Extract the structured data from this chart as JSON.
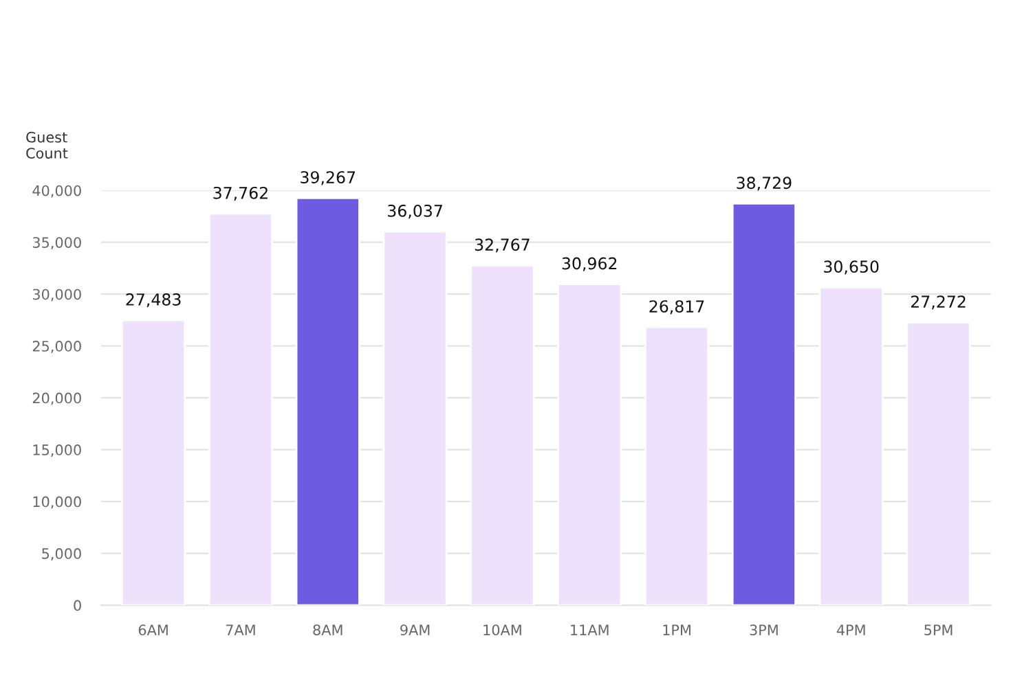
{
  "chart_data": {
    "type": "bar",
    "ylabel": "Guest Count",
    "categories": [
      "6AM",
      "7AM",
      "8AM",
      "9AM",
      "10AM",
      "11AM",
      "1PM",
      "3PM",
      "4PM",
      "5PM"
    ],
    "values": [
      27483,
      37762,
      39267,
      36037,
      32767,
      30962,
      26817,
      38729,
      30650,
      27272
    ],
    "colors": [
      "#ede1fc",
      "#ede1fc",
      "#6f5be2",
      "#ede1fc",
      "#ede1fc",
      "#ede1fc",
      "#ede1fc",
      "#6f5be2",
      "#ede1fc",
      "#ede1fc"
    ],
    "value_labels": [
      "27,483",
      "37,762",
      "39,267",
      "36,037",
      "32,767",
      "30,962",
      "26,817",
      "38,729",
      "30,650",
      "27,272"
    ],
    "ylim": [
      0,
      40000
    ],
    "yticks": [
      {
        "value": 0,
        "label": "0"
      },
      {
        "value": 5000,
        "label": "5,000"
      },
      {
        "value": 10000,
        "label": "10,000"
      },
      {
        "value": 15000,
        "label": "15,000"
      },
      {
        "value": 20000,
        "label": "20,000"
      },
      {
        "value": 25000,
        "label": "25,000"
      },
      {
        "value": 30000,
        "label": "30,000"
      },
      {
        "value": 35000,
        "label": "35,000"
      },
      {
        "value": 40000,
        "label": "40,000"
      }
    ],
    "grid": "y",
    "legend": false
  }
}
